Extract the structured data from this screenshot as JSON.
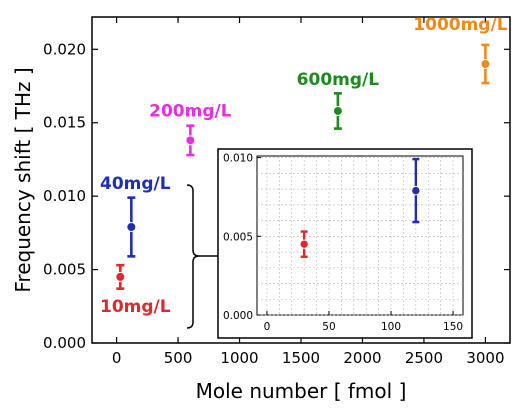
{
  "chart_data": {
    "type": "scatter",
    "xlabel": "Mole number [ fmol ]",
    "ylabel": "Frequency shift [ THz ]",
    "xlim": [
      -200,
      3200
    ],
    "ylim": [
      0,
      0.0222
    ],
    "xticks": [
      0,
      500,
      1000,
      1500,
      2000,
      2500,
      3000
    ],
    "yticks": [
      0.0,
      0.005,
      0.01,
      0.015,
      0.02
    ],
    "xtick_labels": [
      "0",
      "500",
      "1000",
      "1500",
      "2000",
      "2500",
      "3000"
    ],
    "ytick_labels": [
      "0.000",
      "0.005",
      "0.010",
      "0.015",
      "0.020"
    ],
    "grid": false,
    "error_bars": true,
    "points": [
      {
        "label": "10mg/L",
        "x": 30,
        "y": 0.0045,
        "err": 0.0008,
        "color": "#e0282e"
      },
      {
        "label": "40mg/L",
        "x": 120,
        "y": 0.0079,
        "err": 0.002,
        "color": "#1f2fb4"
      },
      {
        "label": "200mg/L",
        "x": 600,
        "y": 0.0138,
        "err": 0.001,
        "color": "#e52fe0"
      },
      {
        "label": "600mg/L",
        "x": 1800,
        "y": 0.0158,
        "err": 0.0012,
        "color": "#1e8a1e"
      },
      {
        "label": "1000mg/L",
        "x": 3000,
        "y": 0.019,
        "err": 0.0013,
        "color": "#f08a1c"
      }
    ],
    "inset": {
      "xlim": [
        -8,
        158
      ],
      "ylim": [
        0,
        0.0101
      ],
      "xticks": [
        0,
        50,
        100,
        150
      ],
      "yticks": [
        0.0,
        0.005,
        0.01
      ],
      "xtick_labels": [
        "0",
        "50",
        "100",
        "150"
      ],
      "ytick_labels": [
        "0.000",
        "0.005",
        "0.010"
      ],
      "grid": true,
      "points": [
        {
          "x": 30,
          "y": 0.0045,
          "err": 0.0008,
          "color": "#e0282e"
        },
        {
          "x": 120,
          "y": 0.0079,
          "err": 0.002,
          "color": "#1f2fb4"
        }
      ]
    }
  }
}
